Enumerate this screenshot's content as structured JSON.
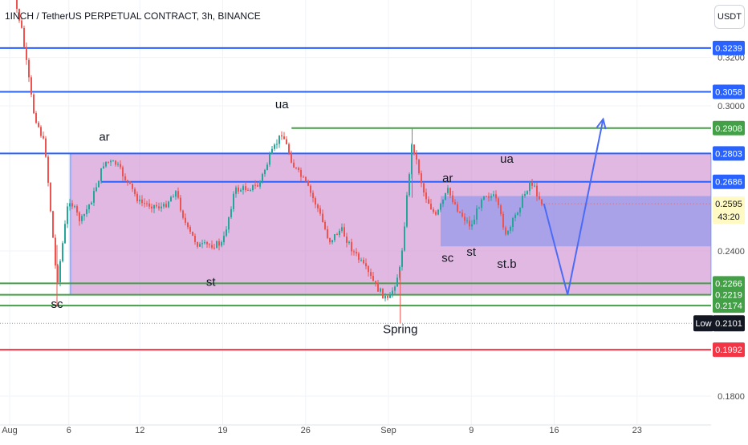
{
  "header": {
    "title": "1INCH / TetherUS PERPETUAL CONTRACT, 3h, BINANCE",
    "currency_button": "USDT"
  },
  "colors": {
    "up": "#26a69a",
    "down": "#ef5350",
    "blue": "#2962ff",
    "green": "#43a047",
    "red": "#f23645",
    "range_fill": "#c87dc8",
    "inner_fill": "#7e8ff0",
    "current_price_bg": "#fff9c4",
    "low_bg": "#131722",
    "text": "#131722",
    "axis_text": "#4a4a4a"
  },
  "chart_data": {
    "type": "candlestick",
    "symbol": "1INCH/USDT",
    "timeframe": "3h",
    "exchange": "BINANCE",
    "x_tick_labels": [
      "Aug",
      "6",
      "12",
      "19",
      "26",
      "Sep",
      "9",
      "16",
      "23"
    ],
    "y_tick_labels": [
      "0.3200",
      "0.3000",
      "0.2400",
      "0.1800"
    ],
    "price_path": [
      {
        "x": "Aug 1",
        "y": 0.352
      },
      {
        "x": "Aug 2",
        "y": 0.332
      },
      {
        "x": "Aug 3",
        "y": 0.298
      },
      {
        "x": "Aug 4",
        "y": 0.283
      },
      {
        "x": "Aug 5",
        "y": 0.226
      },
      {
        "x": "Aug 6",
        "y": 0.262
      },
      {
        "x": "Aug 7",
        "y": 0.252
      },
      {
        "x": "Aug 8",
        "y": 0.262
      },
      {
        "x": "Aug 9",
        "y": 0.277
      },
      {
        "x": "Aug 10",
        "y": 0.276
      },
      {
        "x": "Aug 11",
        "y": 0.268
      },
      {
        "x": "Aug 12",
        "y": 0.26
      },
      {
        "x": "Aug 14",
        "y": 0.258
      },
      {
        "x": "Aug 15",
        "y": 0.265
      },
      {
        "x": "Aug 16",
        "y": 0.249
      },
      {
        "x": "Aug 17",
        "y": 0.242
      },
      {
        "x": "Aug 19",
        "y": 0.243
      },
      {
        "x": "Aug 20",
        "y": 0.265
      },
      {
        "x": "Aug 22",
        "y": 0.267
      },
      {
        "x": "Aug 23",
        "y": 0.279
      },
      {
        "x": "Aug 24",
        "y": 0.289
      },
      {
        "x": "Aug 25",
        "y": 0.275
      },
      {
        "x": "Aug 26",
        "y": 0.268
      },
      {
        "x": "Aug 27",
        "y": 0.258
      },
      {
        "x": "Aug 28",
        "y": 0.244
      },
      {
        "x": "Aug 29",
        "y": 0.249
      },
      {
        "x": "Aug 30",
        "y": 0.24
      },
      {
        "x": "Aug 31",
        "y": 0.233
      },
      {
        "x": "Sep 1",
        "y": 0.225
      },
      {
        "x": "Sep 2",
        "y": 0.219
      },
      {
        "x": "Sep 3",
        "y": 0.233
      },
      {
        "x": "Sep 4",
        "y": 0.285
      },
      {
        "x": "Sep 5",
        "y": 0.264
      },
      {
        "x": "Sep 6",
        "y": 0.254
      },
      {
        "x": "Sep 7",
        "y": 0.265
      },
      {
        "x": "Sep 8",
        "y": 0.256
      },
      {
        "x": "Sep 9",
        "y": 0.25
      },
      {
        "x": "Sep 10",
        "y": 0.264
      },
      {
        "x": "Sep 11",
        "y": 0.262
      },
      {
        "x": "Sep 12",
        "y": 0.246
      },
      {
        "x": "Sep 13",
        "y": 0.258
      },
      {
        "x": "Sep 14",
        "y": 0.269
      },
      {
        "x": "Sep 15",
        "y": 0.2595
      }
    ],
    "projection_path": [
      {
        "x": "Sep 15",
        "y": 0.2595
      },
      {
        "x": "Sep 17",
        "y": 0.2219
      },
      {
        "x": "Sep 20",
        "y": 0.2945
      }
    ],
    "horizontal_levels": [
      {
        "value": 0.3239,
        "label": "0.3239",
        "color": "blue"
      },
      {
        "value": 0.3058,
        "label": "0.3058",
        "color": "blue"
      },
      {
        "value": 0.2908,
        "label": "0.2908",
        "color": "green"
      },
      {
        "value": 0.2803,
        "label": "0.2803",
        "color": "blue"
      },
      {
        "value": 0.2686,
        "label": "0.2686",
        "color": "blue"
      },
      {
        "value": 0.2266,
        "label": "0.2266",
        "color": "green"
      },
      {
        "value": 0.2219,
        "label": "0.2219",
        "color": "green"
      },
      {
        "value": 0.2174,
        "label": "0.2174",
        "color": "green"
      },
      {
        "value": 0.1992,
        "label": "0.1992",
        "color": "red"
      }
    ],
    "trading_range": {
      "from": "Aug 4",
      "to_edge": true,
      "high": 0.2803,
      "low": 0.2219
    },
    "inner_range": {
      "from": "Sep 6",
      "to_edge": true,
      "high": 0.2627,
      "low": 0.2419
    },
    "current_price": {
      "label": "0.2595",
      "countdown": "43:20",
      "value": 0.2595
    },
    "low_marker": {
      "name": "Low",
      "label": "0.2101",
      "value": 0.2101
    },
    "annotations": [
      {
        "text": "ar",
        "x": "Aug 9",
        "y": 0.2855
      },
      {
        "text": "ua",
        "x": "Aug 24",
        "y": 0.299
      },
      {
        "text": "st",
        "x": "Aug 18",
        "y": 0.2255
      },
      {
        "text": "sc",
        "x": "Aug 5",
        "y": 0.2165
      },
      {
        "text": "Spring",
        "x": "Sep 3",
        "y": 0.206
      },
      {
        "text": "sc",
        "x": "Sep 7",
        "y": 0.2355
      },
      {
        "text": "ar",
        "x": "Sep 7",
        "y": 0.2685
      },
      {
        "text": "st",
        "x": "Sep 9",
        "y": 0.238
      },
      {
        "text": "ua",
        "x": "Sep 12",
        "y": 0.2765
      },
      {
        "text": "st.b",
        "x": "Sep 12",
        "y": 0.233
      }
    ]
  }
}
